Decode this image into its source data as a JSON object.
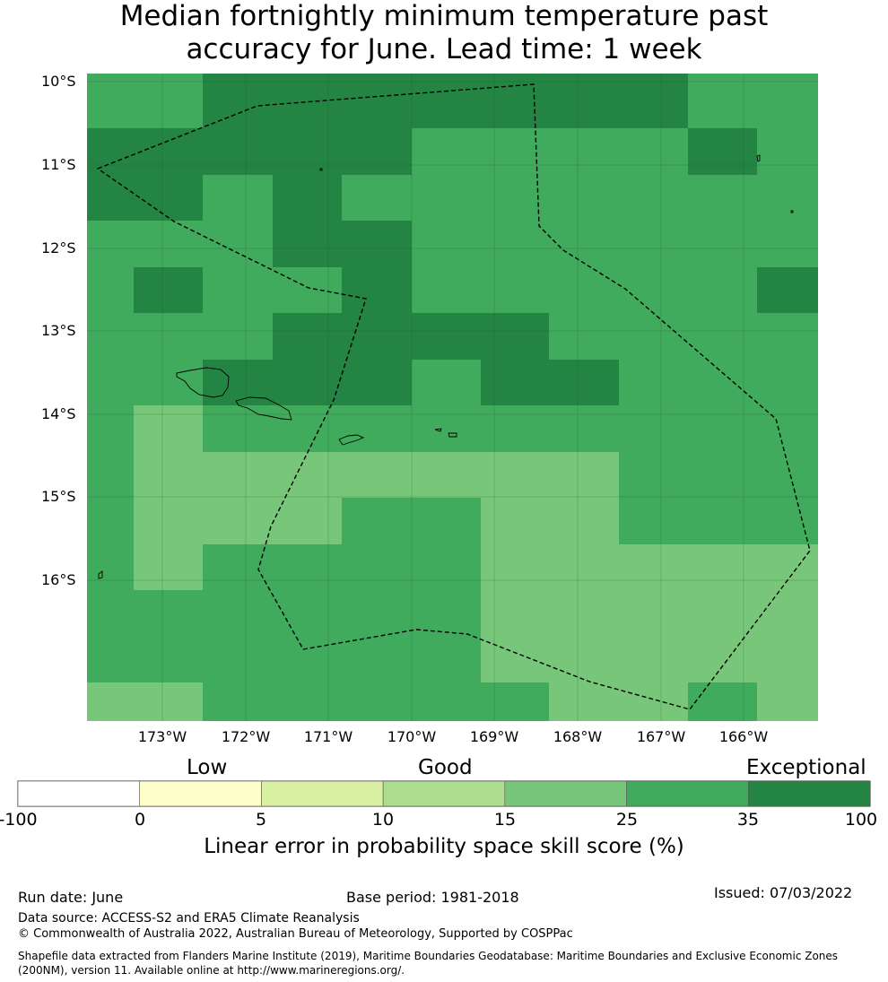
{
  "title_line1": "Median fortnightly minimum temperature past",
  "title_line2": "accuracy for June. Lead time: 1 week",
  "lat_labels": [
    "10°S",
    "11°S",
    "12°S",
    "13°S",
    "14°S",
    "15°S",
    "16°S"
  ],
  "lon_labels": [
    "173°W",
    "172°W",
    "171°W",
    "170°W",
    "169°W",
    "168°W",
    "167°W",
    "166°W"
  ],
  "colorbar": {
    "categories": [
      "Low",
      "Good",
      "Exceptional"
    ],
    "ticks": [
      "-100",
      "0",
      "5",
      "10",
      "15",
      "25",
      "35",
      "100"
    ],
    "colors": [
      "#ffffff",
      "#ffffcc",
      "#d9f0a3",
      "#addd8e",
      "#78c679",
      "#41ab5d",
      "#238443"
    ],
    "title": "Linear error in probability space skill score (%)"
  },
  "grid": {
    "legend_note": "values are category indices into colorbar.colors (4 = 15–25, 5 = 25–35, 6 = 35–100)",
    "rows": [
      [
        5,
        5,
        6,
        6,
        6,
        6,
        6,
        6,
        6,
        5,
        5
      ],
      [
        6,
        6,
        6,
        6,
        6,
        5,
        5,
        5,
        5,
        6,
        5
      ],
      [
        6,
        6,
        5,
        6,
        5,
        5,
        5,
        5,
        5,
        5,
        5
      ],
      [
        5,
        5,
        5,
        6,
        6,
        5,
        5,
        5,
        5,
        5,
        5
      ],
      [
        5,
        6,
        5,
        5,
        6,
        5,
        5,
        5,
        5,
        5,
        6
      ],
      [
        5,
        5,
        5,
        6,
        6,
        6,
        6,
        5,
        5,
        5,
        5
      ],
      [
        5,
        5,
        6,
        6,
        6,
        5,
        6,
        6,
        5,
        5,
        5
      ],
      [
        5,
        4,
        5,
        5,
        5,
        5,
        5,
        5,
        5,
        5,
        5
      ],
      [
        5,
        4,
        4,
        4,
        4,
        4,
        4,
        4,
        5,
        5,
        5
      ],
      [
        5,
        4,
        4,
        4,
        5,
        5,
        4,
        4,
        5,
        5,
        5
      ],
      [
        5,
        4,
        5,
        5,
        5,
        5,
        4,
        4,
        4,
        4,
        4
      ],
      [
        5,
        5,
        5,
        5,
        5,
        5,
        4,
        4,
        4,
        4,
        4
      ],
      [
        5,
        5,
        5,
        5,
        5,
        5,
        4,
        4,
        4,
        4,
        4
      ],
      [
        4,
        4,
        5,
        5,
        5,
        5,
        5,
        4,
        4,
        5,
        4
      ]
    ]
  },
  "footer": {
    "run_date": "Run date: June",
    "base_period": "Base period: 1981-2018",
    "issued": "Issued: 07/03/2022",
    "data_source": "Data source: ACCESS-S2 and ERA5 Climate Reanalysis",
    "copyright": "© Commonwealth of Australia 2022, Australian Bureau of Meteorology, Supported by COSPPac",
    "shapefile_line1": "Shapefile data extracted from Flanders Marine Institute (2019), Maritime Boundaries Geodatabase: Maritime Boundaries and Exclusive Economic Zones",
    "shapefile_line2": "(200NM), version 11. Available online at http://www.marineregions.org/."
  }
}
